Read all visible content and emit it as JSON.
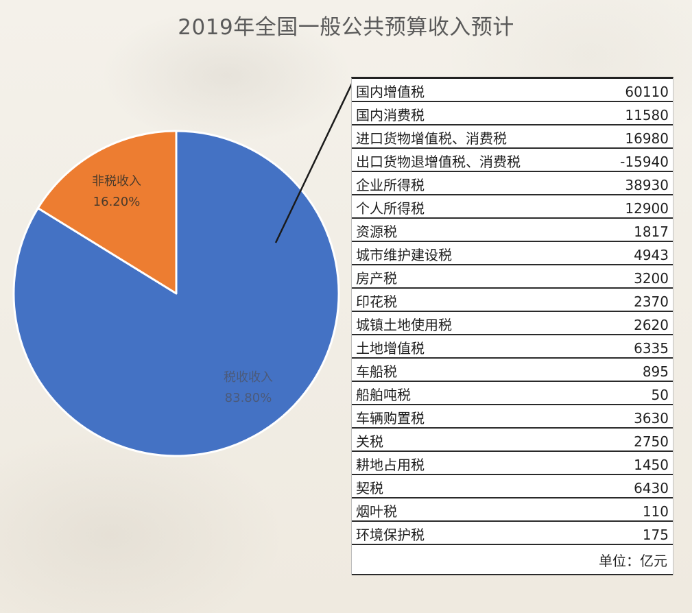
{
  "chart_data": {
    "type": "pie",
    "title": "2019年全国一般公共预算收入预计",
    "slices": [
      {
        "label": "税收收入",
        "value": 83.8,
        "percent_label": "83.80%",
        "color": "#4472c4"
      },
      {
        "label": "非税收入",
        "value": 16.2,
        "percent_label": "16.20%",
        "color": "#ed7d31"
      }
    ],
    "breakdown_table": {
      "rows": [
        {
          "name": "国内增值税",
          "value": "60110"
        },
        {
          "name": "国内消费税",
          "value": "11580"
        },
        {
          "name": "进口货物增值税、消费税",
          "value": "16980"
        },
        {
          "name": "出口货物退增值税、消费税",
          "value": "-15940"
        },
        {
          "name": "企业所得税",
          "value": "38930"
        },
        {
          "name": "个人所得税",
          "value": "12900"
        },
        {
          "name": "资源税",
          "value": "1817"
        },
        {
          "name": "城市维护建设税",
          "value": "4943"
        },
        {
          "name": "房产税",
          "value": "3200"
        },
        {
          "name": "印花税",
          "value": "2370"
        },
        {
          "name": "城镇土地使用税",
          "value": "2620"
        },
        {
          "name": "土地增值税",
          "value": "6335"
        },
        {
          "name": "车船税",
          "value": "895"
        },
        {
          "name": "船舶吨税",
          "value": "50"
        },
        {
          "name": "车辆购置税",
          "value": "3630"
        },
        {
          "name": "关税",
          "value": "2750"
        },
        {
          "name": "耕地占用税",
          "value": "1450"
        },
        {
          "name": "契税",
          "value": "6430"
        },
        {
          "name": "烟叶税",
          "value": "110"
        },
        {
          "name": "环境保护税",
          "value": "175"
        }
      ],
      "unit": "单位：亿元"
    }
  }
}
